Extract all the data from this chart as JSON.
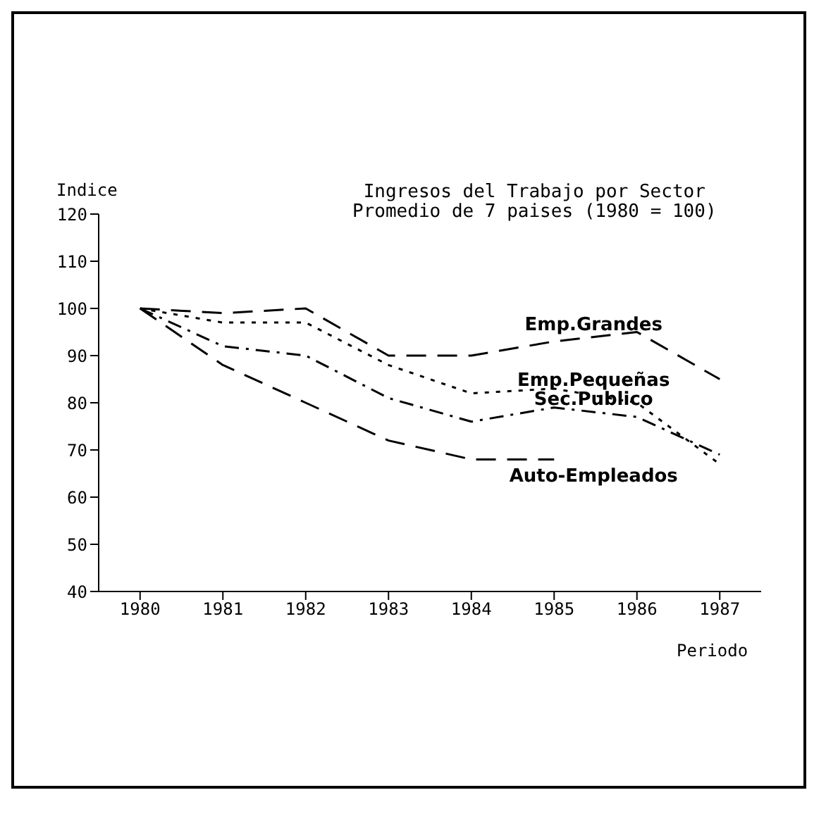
{
  "chart_data": {
    "type": "line",
    "title": "Ingresos del Trabajo por Sector",
    "subtitle": "Promedio de 7 paises (1980 = 100)",
    "ylabel": "Indice",
    "xlabel": "Periodo",
    "categories": [
      "1980",
      "1981",
      "1982",
      "1983",
      "1984",
      "1985",
      "1986",
      "1987"
    ],
    "series": [
      {
        "name": "Emp.Grandes",
        "color": "#000000",
        "line_style": "dashed",
        "values": [
          100,
          99,
          100,
          90,
          90,
          93,
          95,
          85
        ]
      },
      {
        "name": "Emp.Pequeñas",
        "color": "#000000",
        "line_style": "dotted",
        "values": [
          100,
          97,
          97,
          88,
          82,
          83,
          80,
          67
        ]
      },
      {
        "name": "Sec.Publico",
        "color": "#000000",
        "line_style": "dashdot",
        "values": [
          100,
          92,
          90,
          81,
          76,
          79,
          77,
          69
        ]
      },
      {
        "name": "Auto-Empleados",
        "color": "#000000",
        "line_style": "dashed",
        "values": [
          100,
          88,
          80,
          72,
          68,
          68,
          null,
          null
        ]
      }
    ],
    "ylim": [
      40,
      120
    ],
    "yticks": [
      40,
      50,
      60,
      70,
      80,
      90,
      100,
      110,
      120
    ],
    "marker": "none"
  }
}
